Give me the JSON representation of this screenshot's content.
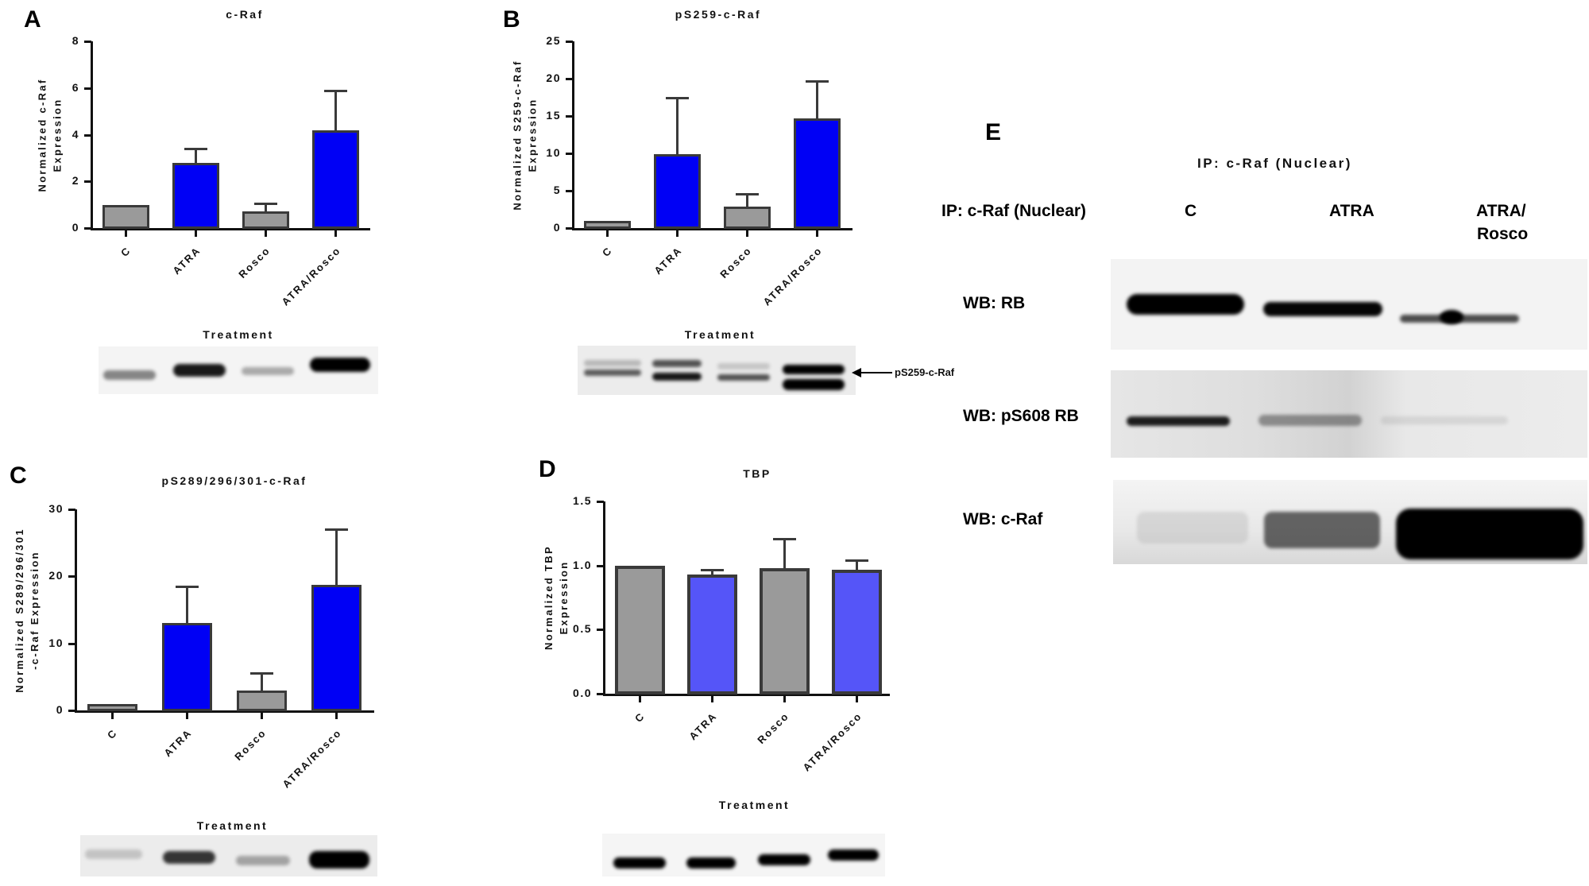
{
  "figure": {
    "panel_letters": [
      "A",
      "B",
      "C",
      "D",
      "E"
    ],
    "colors": {
      "gray_bar": "#9a9a9a",
      "blue_bar": "#0000f5",
      "blue_bar_light": "#5555f8",
      "bar_border": "#3a3a3a",
      "axis": "#111111"
    }
  },
  "chart_data": [
    {
      "id": "A",
      "type": "bar",
      "title": "c-Raf",
      "xlabel": "Treatment",
      "ylabel_lines": [
        "Normalized c-Raf",
        "Expression"
      ],
      "categories": [
        "C",
        "ATRA",
        "Rosco",
        "ATRA/Rosco"
      ],
      "values": [
        1.0,
        2.8,
        0.7,
        4.2
      ],
      "error_upper": [
        1.0,
        3.4,
        1.05,
        5.9
      ],
      "bar_colors": [
        "gray",
        "blue",
        "gray",
        "blue"
      ],
      "ylim": [
        0,
        8
      ],
      "yticks": [
        0,
        2,
        4,
        6,
        8
      ],
      "ytick_labels": [
        "0",
        "2",
        "4",
        "6",
        "8"
      ],
      "grid": false,
      "legend": null
    },
    {
      "id": "B",
      "type": "bar",
      "title": "pS259-c-Raf",
      "xlabel": "Treatment",
      "ylabel_lines": [
        "Normalized S259-c-Raf",
        "Expression"
      ],
      "categories": [
        "C",
        "ATRA",
        "Rosco",
        "ATRA/Rosco"
      ],
      "values": [
        1.0,
        9.9,
        2.9,
        14.7
      ],
      "error_upper": [
        1.0,
        17.4,
        4.6,
        19.7
      ],
      "bar_colors": [
        "gray",
        "blue",
        "gray",
        "blue"
      ],
      "ylim": [
        0,
        25
      ],
      "yticks": [
        0,
        5,
        10,
        15,
        20,
        25
      ],
      "ytick_labels": [
        "0",
        "5",
        "10",
        "15",
        "20",
        "25"
      ],
      "grid": false,
      "legend": null
    },
    {
      "id": "C",
      "type": "bar",
      "title": "pS289/296/301-c-Raf",
      "xlabel": "Treatment",
      "ylabel_lines": [
        "Normalized S289/296/301",
        "-c-Raf Expression"
      ],
      "categories": [
        "C",
        "ATRA",
        "Rosco",
        "ATRA/Rosco"
      ],
      "values": [
        1.0,
        13.0,
        3.0,
        18.7
      ],
      "error_upper": [
        1.0,
        18.5,
        5.6,
        27.0
      ],
      "bar_colors": [
        "gray",
        "blue",
        "gray",
        "blue"
      ],
      "ylim": [
        0,
        30
      ],
      "yticks": [
        0,
        10,
        20,
        30
      ],
      "ytick_labels": [
        "0",
        "10",
        "20",
        "30"
      ],
      "grid": false,
      "legend": null
    },
    {
      "id": "D",
      "type": "bar",
      "title": "TBP",
      "xlabel": "Treatment",
      "ylabel_lines": [
        "Normalized TBP",
        "Expression"
      ],
      "categories": [
        "C",
        "ATRA",
        "Rosco",
        "ATRA/Rosco"
      ],
      "values": [
        1.0,
        0.93,
        0.98,
        0.97
      ],
      "error_upper": [
        1.0,
        0.97,
        1.21,
        1.04
      ],
      "bar_colors": [
        "gray",
        "blue_light",
        "gray",
        "blue_light"
      ],
      "ylim": [
        0,
        1.5
      ],
      "yticks": [
        0,
        0.5,
        1.0,
        1.5
      ],
      "ytick_labels": [
        "0.0",
        "0.5",
        "1.0",
        "1.5"
      ],
      "grid": false,
      "legend": null
    }
  ],
  "blots": {
    "B_arrow_label": "pS259-c-Raf"
  },
  "panel_E": {
    "top_title": "IP: c-Raf (Nuclear)",
    "row_header": "IP: c-Raf (Nuclear)",
    "lanes": [
      "C",
      "ATRA",
      "ATRA/\nRosco"
    ],
    "lane_line1": [
      "C",
      "ATRA",
      "ATRA/"
    ],
    "lane_line2": [
      "",
      "",
      "Rosco"
    ],
    "rows": [
      {
        "label": "WB: RB"
      },
      {
        "label": "WB: pS608 RB"
      },
      {
        "label": "WB: c-Raf"
      }
    ]
  }
}
